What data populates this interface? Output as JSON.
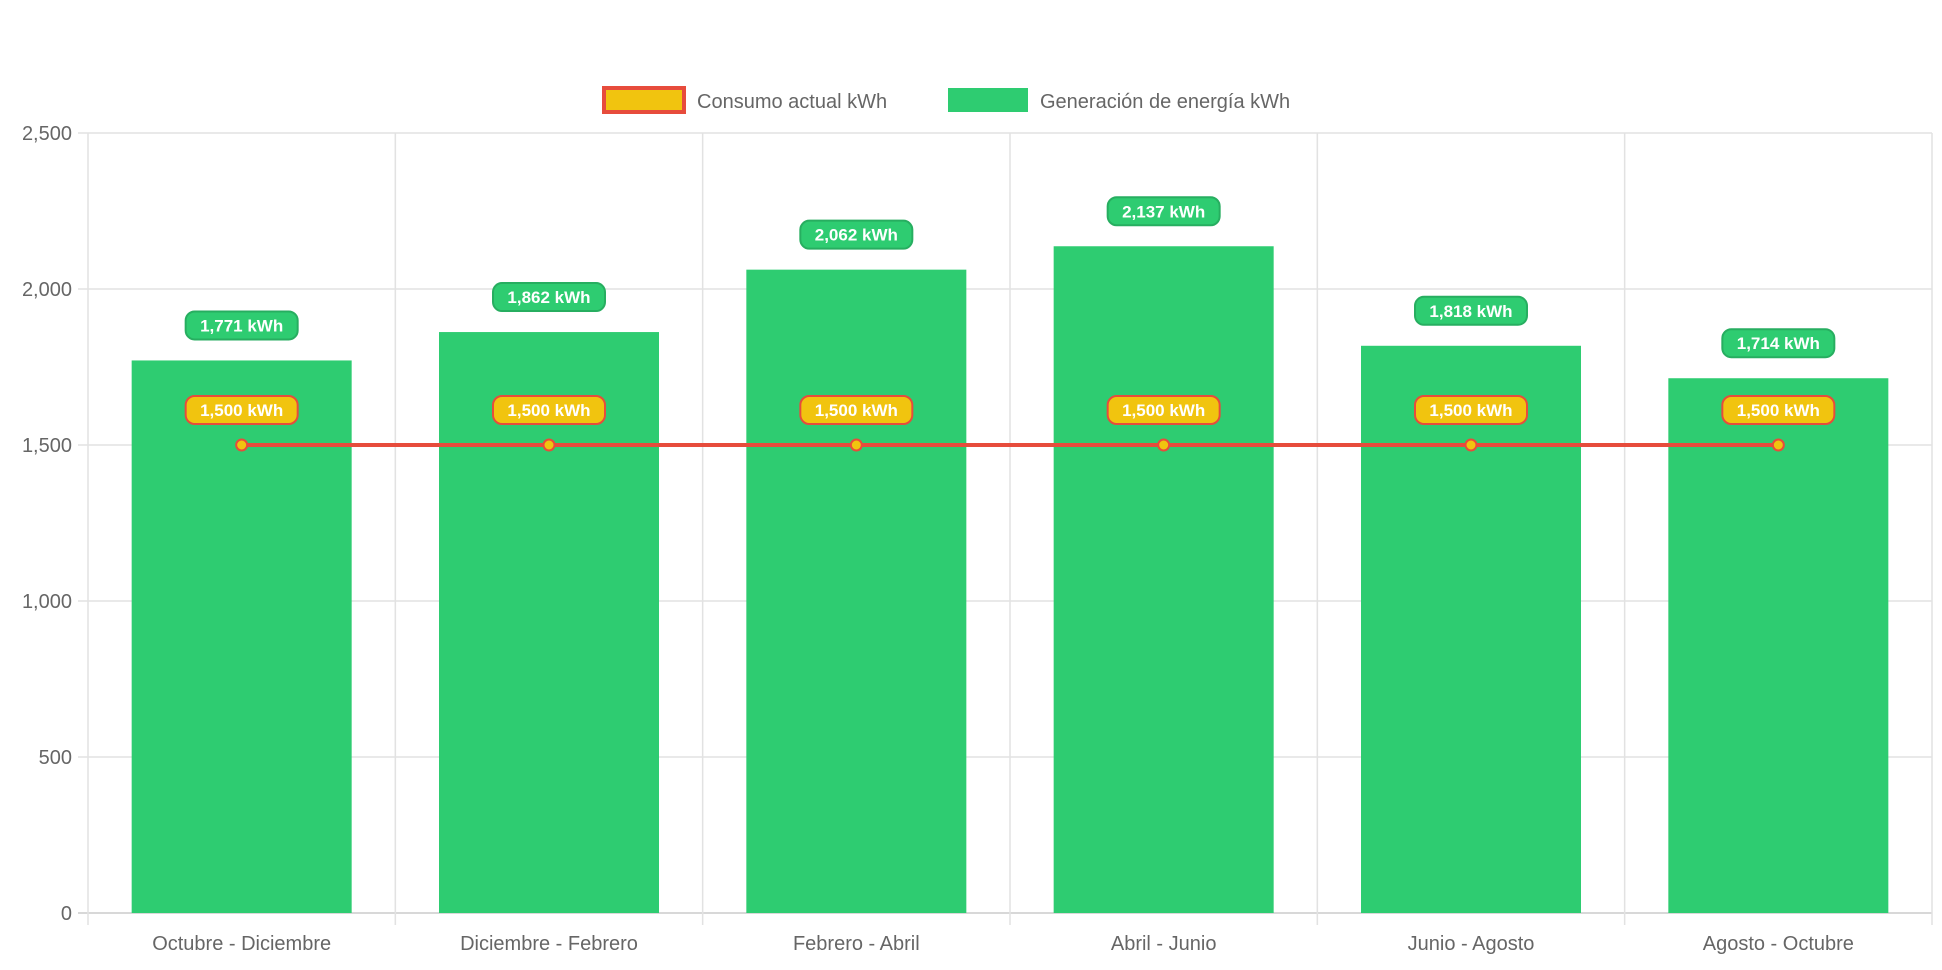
{
  "chart_data": {
    "type": "bar",
    "title": "",
    "xlabel": "",
    "ylabel": "",
    "ylim": [
      0,
      2500
    ],
    "yticks": [
      0,
      500,
      1000,
      1500,
      2000,
      2500
    ],
    "ytick_labels": [
      "0",
      "500",
      "1,000",
      "1,500",
      "2,000",
      "2,500"
    ],
    "grid": true,
    "legend_position": "top-center",
    "categories": [
      "Octubre - Diciembre",
      "Diciembre - Febrero",
      "Febrero - Abril",
      "Abril - Junio",
      "Junio - Agosto",
      "Agosto - Octubre"
    ],
    "series": [
      {
        "name": "Consumo actual kWh",
        "type": "line",
        "values": [
          1500,
          1500,
          1500,
          1500,
          1500,
          1500
        ],
        "labels": [
          "1,500 kWh",
          "1,500 kWh",
          "1,500 kWh",
          "1,500 kWh",
          "1,500 kWh",
          "1,500 kWh"
        ],
        "color": "#f1c40f",
        "border_color": "#e74c3c"
      },
      {
        "name": "Generación de energía kWh",
        "type": "bar",
        "values": [
          1771,
          1862,
          2062,
          2137,
          1818,
          1714
        ],
        "labels": [
          "1,771 kWh",
          "1,862 kWh",
          "2,062 kWh",
          "2,137 kWh",
          "1,818 kWh",
          "1,714 kWh"
        ],
        "color": "#2ecc71",
        "border_color": "#27ae60"
      }
    ]
  }
}
